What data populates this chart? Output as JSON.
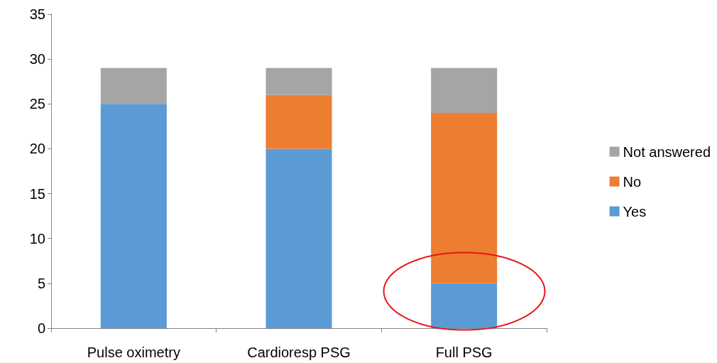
{
  "chart_data": {
    "type": "bar",
    "stacked": true,
    "categories": [
      "Pulse oximetry",
      "Cardioresp PSG",
      "Full PSG"
    ],
    "series": [
      {
        "name": "Yes",
        "color": "#5b9bd5",
        "values": [
          25,
          20,
          5
        ]
      },
      {
        "name": "No",
        "color": "#ed7d31",
        "values": [
          0,
          6,
          19
        ]
      },
      {
        "name": "Not answered",
        "color": "#a5a5a5",
        "values": [
          4,
          3,
          5
        ]
      }
    ],
    "ylim": [
      0,
      35
    ],
    "yticks": [
      0,
      5,
      10,
      15,
      20,
      25,
      30,
      35
    ],
    "grid": false,
    "legend": "right"
  }
}
